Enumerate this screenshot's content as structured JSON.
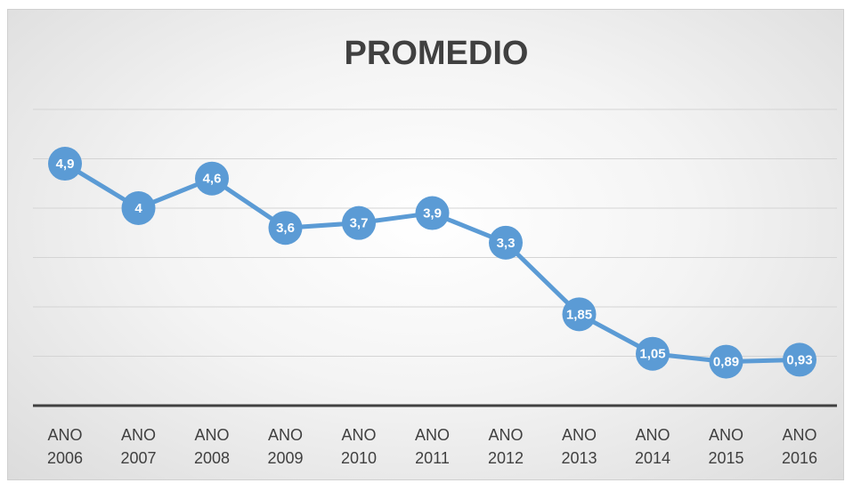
{
  "chart_data": {
    "type": "line",
    "title": "PROMEDIO",
    "categories": [
      "ANO 2006",
      "ANO 2007",
      "ANO 2008",
      "ANO 2009",
      "ANO 2010",
      "ANO 2011",
      "ANO 2012",
      "ANO 2013",
      "ANO 2014",
      "ANO 2015",
      "ANO 2016"
    ],
    "series": [
      {
        "name": "PROMEDIO",
        "color": "#5b9bd5",
        "values": [
          4.9,
          4,
          4.6,
          3.6,
          3.7,
          3.9,
          3.3,
          1.85,
          1.05,
          0.89,
          0.93
        ],
        "value_labels": [
          "4,9",
          "4",
          "4,6",
          "3,6",
          "3,7",
          "3,9",
          "3,3",
          "1,85",
          "1,05",
          "0,89",
          "0,93"
        ]
      }
    ],
    "ylim": [
      0,
      6
    ],
    "yticks": [
      0,
      1,
      2,
      3,
      4,
      5,
      6
    ],
    "grid": true
  }
}
